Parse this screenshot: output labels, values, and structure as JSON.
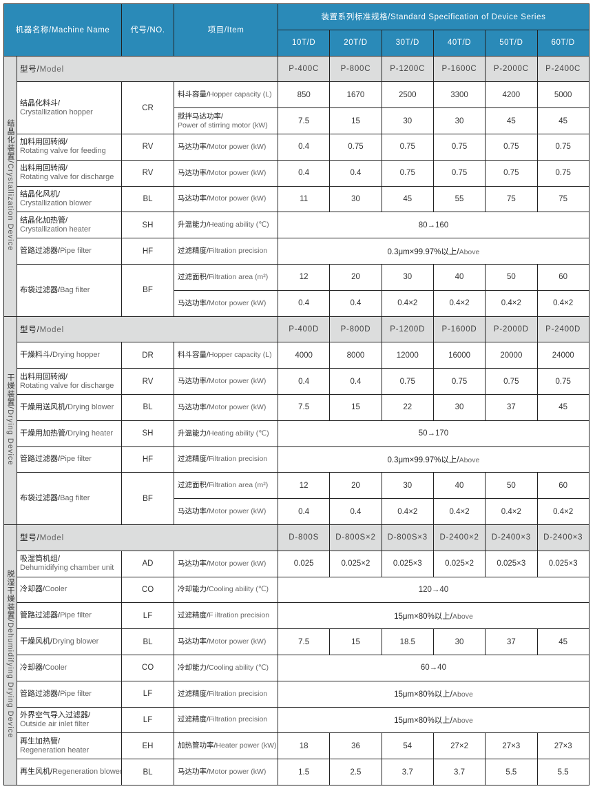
{
  "header": {
    "machine_name": "机器名称/Machine Name",
    "code": "代号/NO.",
    "item": "项目/Item",
    "spec": "装置系列标准规格/Standard Specification of Device Series",
    "capacities": [
      "10T/D",
      "20T/D",
      "30T/D",
      "40T/D",
      "50T/D",
      "60T/D"
    ]
  },
  "colors": {
    "header_bg": "#2a8ab8",
    "model_row_bg": "#dcdddd",
    "group_bg": "#d9dadb"
  },
  "sections": [
    {
      "label_cn": "结晶化装置/",
      "label_en": "Crystallization Device",
      "model_cn": "型号/",
      "model_en": "Model",
      "models": [
        "P-400C",
        "P-800C",
        "P-1200C",
        "P-1600C",
        "P-2000C",
        "P-2400C"
      ],
      "rows": [
        {
          "name_cn": "结晶化料斗/",
          "name_en": "Crystallization hopper",
          "wrap": true,
          "code": "CR",
          "items": [
            {
              "cn": "料斗容量/",
              "en": "Hopper capacity (L)",
              "values": [
                "850",
                "1670",
                "2500",
                "3300",
                "4200",
                "5000"
              ]
            },
            {
              "cn": "搅拌马达功率/",
              "en": "Power of stirring motor (kW)",
              "wrap": true,
              "values": [
                "7.5",
                "15",
                "30",
                "30",
                "45",
                "45"
              ]
            }
          ]
        },
        {
          "name_cn": "加料用回转阀/",
          "name_en": "Rotating valve for feeding",
          "wrap": true,
          "code": "RV",
          "items": [
            {
              "cn": "马达功率/",
              "en": "Motor power (kW)",
              "values": [
                "0.4",
                "0.75",
                "0.75",
                "0.75",
                "0.75",
                "0.75"
              ]
            }
          ]
        },
        {
          "name_cn": "出料用回转阀/",
          "name_en": "Rotating valve for discharge",
          "wrap": true,
          "code": "RV",
          "items": [
            {
              "cn": "马达功率/",
              "en": "Motor power (kW)",
              "values": [
                "0.4",
                "0.4",
                "0.75",
                "0.75",
                "0.75",
                "0.75"
              ]
            }
          ]
        },
        {
          "name_cn": "结晶化风机/",
          "name_en": "Crystallization blower",
          "wrap": true,
          "code": "BL",
          "items": [
            {
              "cn": "马达功率/",
              "en": "Motor power (kW)",
              "values": [
                "11",
                "30",
                "45",
                "55",
                "75",
                "75"
              ]
            }
          ]
        },
        {
          "name_cn": "结晶化加热管/",
          "name_en": "Crystallization heater",
          "wrap": true,
          "code": "SH",
          "items": [
            {
              "cn": "升温能力/",
              "en": "Heating ability (℃)",
              "span": "80→160"
            }
          ]
        },
        {
          "name_cn": "管路过滤器/",
          "name_en": "Pipe filter",
          "code": "HF",
          "items": [
            {
              "cn": "过滤精度/",
              "en": "Filtration precision",
              "span_cn": "0.3μm×99.97%以上/",
              "span_en": "Above"
            }
          ]
        },
        {
          "name_cn": "布袋过滤器/",
          "name_en": "Bag filter",
          "code": "BF",
          "items": [
            {
              "cn": "过滤面积/",
              "en": "Filtration area (m²)",
              "values": [
                "12",
                "20",
                "30",
                "40",
                "50",
                "60"
              ]
            },
            {
              "cn": "马达功率/",
              "en": "Motor power (kW)",
              "values": [
                "0.4",
                "0.4",
                "0.4×2",
                "0.4×2",
                "0.4×2",
                "0.4×2"
              ]
            }
          ]
        }
      ]
    },
    {
      "label_cn": "干燥装置/",
      "label_en": "Drying Device",
      "model_cn": "型号/",
      "model_en": "Model",
      "models": [
        "P-400D",
        "P-800D",
        "P-1200D",
        "P-1600D",
        "P-2000D",
        "P-2400D"
      ],
      "rows": [
        {
          "name_cn": "干燥料斗/",
          "name_en": "Drying hopper",
          "code": "DR",
          "items": [
            {
              "cn": "料斗容量/",
              "en": "Hopper capacity (L)",
              "values": [
                "4000",
                "8000",
                "12000",
                "16000",
                "20000",
                "24000"
              ]
            }
          ]
        },
        {
          "name_cn": "出料用回转阀/",
          "name_en": "Rotating valve for discharge",
          "wrap": true,
          "code": "RV",
          "items": [
            {
              "cn": "马达功率/",
              "en": "Motor power (kW)",
              "values": [
                "0.4",
                "0.4",
                "0.75",
                "0.75",
                "0.75",
                "0.75"
              ]
            }
          ]
        },
        {
          "name_cn": "干燥用送风机/",
          "name_en": "Drying blower",
          "code": "BL",
          "items": [
            {
              "cn": "马达功率/",
              "en": "Motor power (kW)",
              "values": [
                "7.5",
                "15",
                "22",
                "30",
                "37",
                "45"
              ]
            }
          ]
        },
        {
          "name_cn": "干燥用加热管/",
          "name_en": "Drying heater",
          "code": "SH",
          "items": [
            {
              "cn": "升温能力/",
              "en": "Heating ability (℃)",
              "span": "50→170"
            }
          ]
        },
        {
          "name_cn": "管路过滤器/",
          "name_en": "Pipe filter",
          "code": "HF",
          "items": [
            {
              "cn": "过滤精度/",
              "en": "Filtration precision",
              "span_cn": "0.3μm×99.97%以上/",
              "span_en": "Above"
            }
          ]
        },
        {
          "name_cn": "布袋过滤器/",
          "name_en": "Bag filter",
          "code": "BF",
          "items": [
            {
              "cn": "过滤面积/",
              "en": "Filtration area (m²)",
              "values": [
                "12",
                "20",
                "30",
                "40",
                "50",
                "60"
              ]
            },
            {
              "cn": "马达功率/",
              "en": "Motor power (kW)",
              "values": [
                "0.4",
                "0.4",
                "0.4×2",
                "0.4×2",
                "0.4×2",
                "0.4×2"
              ]
            }
          ]
        }
      ]
    },
    {
      "label_cn": "脱湿干燥装置/",
      "label_en": "Dehumidifying Drying Device",
      "model_cn": "型号/",
      "model_en": "Model",
      "models": [
        "D-800S",
        "D-800S×2",
        "D-800S×3",
        "D-2400×2",
        "D-2400×3",
        "D-2400×3"
      ],
      "rows": [
        {
          "name_cn": "吸湿筒机组/",
          "name_en": "Dehumidifying chamber unit",
          "wrap": true,
          "code": "AD",
          "items": [
            {
              "cn": "马达功率/",
              "en": "Motor power (kW)",
              "values": [
                "0.025",
                "0.025×2",
                "0.025×3",
                "0.025×2",
                "0.025×3",
                "0.025×3"
              ]
            }
          ]
        },
        {
          "name_cn": "冷却器/",
          "name_en": "Cooler",
          "code": "CO",
          "items": [
            {
              "cn": "冷却能力/",
              "en": "Cooling ability (℃)",
              "span": "120→40"
            }
          ]
        },
        {
          "name_cn": "管路过滤器/",
          "name_en": "Pipe filter",
          "code": "LF",
          "items": [
            {
              "cn": "过滤精度/",
              "en": "F iltration precision",
              "span_cn": "15μm×80%以上/",
              "span_en": "Above"
            }
          ]
        },
        {
          "name_cn": "干燥风机/",
          "name_en": "Drying blower",
          "code": "BL",
          "items": [
            {
              "cn": "马达功率/",
              "en": "Motor power (kW)",
              "values": [
                "7.5",
                "15",
                "18.5",
                "30",
                "37",
                "45"
              ]
            }
          ]
        },
        {
          "name_cn": "冷却器/",
          "name_en": "Cooler",
          "code": "CO",
          "items": [
            {
              "cn": "冷却能力/",
              "en": "Cooling ability (℃)",
              "span": "60→40"
            }
          ]
        },
        {
          "name_cn": "管路过滤器/",
          "name_en": "Pipe filter",
          "code": "LF",
          "items": [
            {
              "cn": "过滤精度/",
              "en": "Filtration precision",
              "span_cn": "15μm×80%以上/",
              "span_en": "Above"
            }
          ]
        },
        {
          "name_cn": "外界空气导入过滤器/",
          "name_en": "Outside air inlet filter",
          "wrap": true,
          "code": "LF",
          "items": [
            {
              "cn": "过滤精度/",
              "en": "Filtration precision",
              "span_cn": "15μm×80%以上/",
              "span_en": "Above"
            }
          ]
        },
        {
          "name_cn": "再生加热管/",
          "name_en": "Regeneration heater",
          "wrap": true,
          "code": "EH",
          "items": [
            {
              "cn": "加热管功率/",
              "en": "Heater power (kW)",
              "values": [
                "18",
                "36",
                "54",
                "27×2",
                "27×3",
                "27×3"
              ]
            }
          ]
        },
        {
          "name_cn": "再生风机/",
          "name_en": "Regeneration blower",
          "code": "BL",
          "items": [
            {
              "cn": "马达功率/",
              "en": "Motor power (kW)",
              "values": [
                "1.5",
                "2.5",
                "3.7",
                "3.7",
                "5.5",
                "5.5"
              ]
            }
          ]
        }
      ]
    }
  ]
}
